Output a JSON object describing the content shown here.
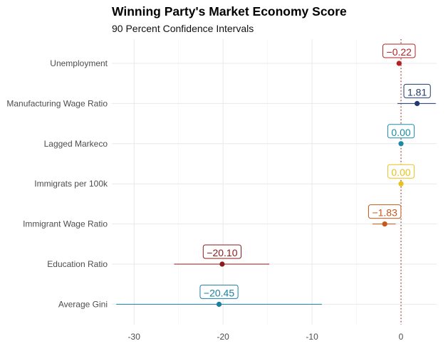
{
  "title": "Winning Party's Market Economy Score",
  "subtitle": "90 Percent Confidence Intervals",
  "chart_data": {
    "type": "scatter",
    "subtype": "coefficient-plot-with-confidence-intervals",
    "title": "Winning Party's Market Economy Score",
    "subtitle": "90 Percent Confidence Intervals",
    "xlabel": "",
    "ylabel": "",
    "xlim": [
      -32.5,
      4.0
    ],
    "x_ticks": [
      -30,
      -20,
      -10,
      0
    ],
    "x_tick_labels": [
      "-30",
      "-20",
      "-10",
      "0"
    ],
    "reference_line": {
      "x": 0,
      "style": "dotted",
      "color": "#8b1a1a"
    },
    "grid": true,
    "legend": "none",
    "categories": [
      "Unemployment",
      "Manufacturing Wage Ratio",
      "Lagged Markeco",
      "Immigrats per 100k",
      "Immigrant Wage Ratio",
      "Education Ratio",
      "Average Gini"
    ],
    "points": [
      {
        "category": "Unemployment",
        "estimate": -0.22,
        "ci_low": -0.5,
        "ci_high": 0.1,
        "label": "−0.22",
        "color": "#b22222"
      },
      {
        "category": "Manufacturing Wage Ratio",
        "estimate": 1.81,
        "ci_low": -0.4,
        "ci_high": 3.9,
        "label": "1.81",
        "color": "#1f3a6e"
      },
      {
        "category": "Lagged Markeco",
        "estimate": 0.0,
        "ci_low": -0.05,
        "ci_high": 0.05,
        "label": "0.00",
        "color": "#1a8aa8"
      },
      {
        "category": "Immigrats per 100k",
        "estimate": 0.0,
        "ci_low": -0.05,
        "ci_high": 0.05,
        "label": "0.00",
        "color": "#e8c21a"
      },
      {
        "category": "Immigrant Wage Ratio",
        "estimate": -1.83,
        "ci_low": -3.2,
        "ci_high": -0.6,
        "label": "−1.83",
        "color": "#c8571a"
      },
      {
        "category": "Education Ratio",
        "estimate": -20.1,
        "ci_low": -25.5,
        "ci_high": -14.8,
        "label": "−20.10",
        "color": "#8b1a1a"
      },
      {
        "category": "Average Gini",
        "estimate": -20.45,
        "ci_low": -32.0,
        "ci_high": -8.9,
        "label": "−20.45",
        "color": "#1a7fa0"
      }
    ]
  }
}
